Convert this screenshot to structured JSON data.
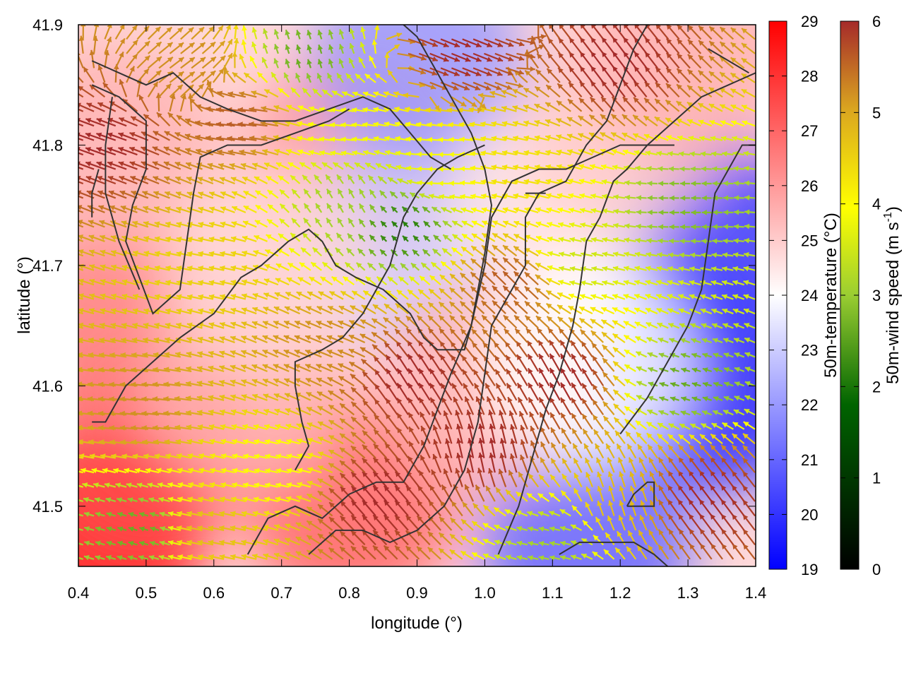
{
  "chart_data": {
    "type": "heatmap",
    "title": "",
    "xlabel": "longitude (°)",
    "ylabel": "latitude (°)",
    "xlim": [
      0.4,
      1.4
    ],
    "ylim": [
      41.45,
      41.9
    ],
    "x_ticks": [
      "0.4",
      "0.5",
      "0.6",
      "0.7",
      "0.8",
      "0.9",
      "1.0",
      "1.1",
      "1.2",
      "1.3",
      "1.4"
    ],
    "y_ticks": [
      "41.5",
      "41.6",
      "41.7",
      "41.8",
      "41.9"
    ],
    "grid": false,
    "overlays": [
      "wind-vectors",
      "contour-lines"
    ],
    "temperature_colorbar": {
      "label": "50m-temperature (°C)",
      "range": [
        19,
        29
      ],
      "ticks": [
        "19",
        "20",
        "21",
        "22",
        "23",
        "24",
        "25",
        "26",
        "27",
        "28",
        "29"
      ],
      "colors": [
        "#0000ff",
        "#ffffff",
        "#ff0000"
      ]
    },
    "wind_colorbar": {
      "label": "50m-wind speed (m s-1)",
      "label_base": "50m-wind speed (m s",
      "label_exp": "-1",
      "label_close": ")",
      "range": [
        0,
        6
      ],
      "ticks": [
        "0",
        "1",
        "2",
        "3",
        "4",
        "5",
        "6"
      ],
      "colors": [
        "#000000",
        "#006400",
        "#9acd32",
        "#ffff00",
        "#daa520",
        "#a52a2a"
      ]
    },
    "temperature_regions": [
      {
        "lon": 0.43,
        "lat": 41.47,
        "value": 28.8
      },
      {
        "lon": 0.5,
        "lat": 41.55,
        "value": 27.5
      },
      {
        "lon": 0.45,
        "lat": 41.65,
        "value": 26.5
      },
      {
        "lon": 0.45,
        "lat": 41.8,
        "value": 25.5
      },
      {
        "lon": 0.8,
        "lat": 41.5,
        "value": 27.0
      },
      {
        "lon": 0.8,
        "lat": 41.79,
        "value": 26.0
      },
      {
        "lon": 0.88,
        "lat": 41.72,
        "value": 23.0
      },
      {
        "lon": 0.9,
        "lat": 41.87,
        "value": 22.0
      },
      {
        "lon": 1.34,
        "lat": 41.6,
        "value": 19.8
      },
      {
        "lon": 1.34,
        "lat": 41.72,
        "value": 20.2
      },
      {
        "lon": 1.15,
        "lat": 41.47,
        "value": 21.0
      },
      {
        "lon": 1.1,
        "lat": 41.75,
        "value": 24.5
      },
      {
        "lon": 1.2,
        "lat": 41.82,
        "value": 25.0
      },
      {
        "lon": 1.3,
        "lat": 41.87,
        "value": 25.5
      },
      {
        "lon": 1.0,
        "lat": 41.6,
        "value": 25.5
      },
      {
        "lon": 1.15,
        "lat": 41.62,
        "value": 24.0
      },
      {
        "lon": 0.65,
        "lat": 41.6,
        "value": 25.5
      },
      {
        "lon": 0.68,
        "lat": 41.7,
        "value": 24.8
      }
    ],
    "wind_regions": [
      {
        "lon": 0.45,
        "lat": 41.8,
        "speed": 6,
        "u": -1,
        "v": 0.35
      },
      {
        "lon": 0.55,
        "lat": 41.86,
        "speed": 5,
        "u": 0.8,
        "v": 0.6
      },
      {
        "lon": 0.65,
        "lat": 41.82,
        "speed": 5.5,
        "u": -1,
        "v": 0.1
      },
      {
        "lon": 0.6,
        "lat": 41.7,
        "speed": 4.2,
        "u": -1,
        "v": 0.2
      },
      {
        "lon": 0.74,
        "lat": 41.87,
        "speed": 2,
        "u": -0.3,
        "v": 1
      },
      {
        "lon": 0.8,
        "lat": 41.75,
        "speed": 2.5,
        "u": -0.5,
        "v": 0.9
      },
      {
        "lon": 0.88,
        "lat": 41.73,
        "speed": 1.5,
        "u": -0.7,
        "v": 0.7
      },
      {
        "lon": 0.8,
        "lat": 41.81,
        "speed": 3.5,
        "u": -1,
        "v": 0.1
      },
      {
        "lon": 0.5,
        "lat": 41.58,
        "speed": 5,
        "u": -1,
        "v": 0.1
      },
      {
        "lon": 0.5,
        "lat": 41.48,
        "speed": 2,
        "u": -1,
        "v": 0.3
      },
      {
        "lon": 0.7,
        "lat": 41.53,
        "speed": 3.5,
        "u": -1,
        "v": 0.2
      },
      {
        "lon": 0.78,
        "lat": 41.63,
        "speed": 5,
        "u": -1,
        "v": 0.4
      },
      {
        "lon": 0.9,
        "lat": 41.6,
        "speed": 6,
        "u": -0.5,
        "v": 0.8
      },
      {
        "lon": 1.0,
        "lat": 41.54,
        "speed": 6,
        "u": -0.2,
        "v": 1
      },
      {
        "lon": 0.85,
        "lat": 41.5,
        "speed": 6,
        "u": -0.6,
        "v": 0.7
      },
      {
        "lon": 1.05,
        "lat": 41.68,
        "speed": 5.5,
        "u": -0.7,
        "v": 0.7
      },
      {
        "lon": 1.15,
        "lat": 41.7,
        "speed": 3,
        "u": -1,
        "v": 0.2
      },
      {
        "lon": 1.3,
        "lat": 41.6,
        "speed": 2,
        "u": -1,
        "v": 0.3
      },
      {
        "lon": 1.3,
        "lat": 41.75,
        "speed": 2.2,
        "u": -1,
        "v": 0
      },
      {
        "lon": 1.2,
        "lat": 41.5,
        "speed": 4.5,
        "u": -0.3,
        "v": 1
      },
      {
        "lon": 1.33,
        "lat": 41.5,
        "speed": 6,
        "u": -0.6,
        "v": 0.8
      },
      {
        "lon": 1.12,
        "lat": 41.6,
        "speed": 6,
        "u": -0.5,
        "v": 0.9
      },
      {
        "lon": 1.2,
        "lat": 41.86,
        "speed": 6,
        "u": -0.6,
        "v": 0.8
      },
      {
        "lon": 1.05,
        "lat": 41.78,
        "speed": 4,
        "u": -1,
        "v": 0.2
      },
      {
        "lon": 0.95,
        "lat": 41.78,
        "speed": 3.5,
        "u": -1,
        "v": 0
      },
      {
        "lon": 1.1,
        "lat": 41.47,
        "speed": 2.5,
        "u": -1,
        "v": 0.2
      },
      {
        "lon": 0.6,
        "lat": 41.48,
        "speed": 4.5,
        "u": -1,
        "v": 0.2
      },
      {
        "lon": 0.95,
        "lat": 41.88,
        "speed": 6,
        "u": 1,
        "v": -0.4
      }
    ],
    "contours": [
      [
        [
          0.42,
          41.57
        ],
        [
          0.44,
          41.57
        ],
        [
          0.47,
          41.6
        ],
        [
          0.51,
          41.62
        ],
        [
          0.55,
          41.64
        ],
        [
          0.6,
          41.66
        ],
        [
          0.64,
          41.69
        ],
        [
          0.67,
          41.7
        ],
        [
          0.71,
          41.72
        ],
        [
          0.74,
          41.73
        ],
        [
          0.76,
          41.72
        ],
        [
          0.78,
          41.7
        ],
        [
          0.81,
          41.69
        ],
        [
          0.85,
          41.68
        ],
        [
          0.87,
          41.67
        ],
        [
          0.89,
          41.66
        ],
        [
          0.91,
          41.64
        ],
        [
          0.93,
          41.63
        ],
        [
          0.95,
          41.63
        ],
        [
          0.97,
          41.63
        ],
        [
          0.98,
          41.65
        ],
        [
          0.99,
          41.68
        ],
        [
          1.0,
          41.71
        ],
        [
          1.01,
          41.75
        ],
        [
          1.0,
          41.78
        ],
        [
          0.98,
          41.81
        ],
        [
          0.95,
          41.84
        ],
        [
          0.92,
          41.87
        ],
        [
          0.9,
          41.89
        ],
        [
          0.88,
          41.9
        ]
      ],
      [
        [
          0.42,
          41.87
        ],
        [
          0.46,
          41.86
        ],
        [
          0.5,
          41.85
        ],
        [
          0.54,
          41.86
        ],
        [
          0.58,
          41.84
        ],
        [
          0.62,
          41.83
        ],
        [
          0.67,
          41.82
        ],
        [
          0.72,
          41.82
        ],
        [
          0.77,
          41.83
        ],
        [
          0.82,
          41.84
        ],
        [
          0.86,
          41.83
        ],
        [
          0.89,
          41.81
        ],
        [
          0.92,
          41.79
        ],
        [
          0.95,
          41.78
        ]
      ],
      [
        [
          0.42,
          41.85
        ],
        [
          0.46,
          41.84
        ],
        [
          0.5,
          41.82
        ],
        [
          0.5,
          41.78
        ],
        [
          0.48,
          41.75
        ],
        [
          0.47,
          41.72
        ],
        [
          0.49,
          41.69
        ],
        [
          0.51,
          41.66
        ],
        [
          0.53,
          41.67
        ],
        [
          0.55,
          41.68
        ],
        [
          0.56,
          41.72
        ],
        [
          0.57,
          41.76
        ],
        [
          0.58,
          41.79
        ],
        [
          0.62,
          41.8
        ],
        [
          0.67,
          41.8
        ],
        [
          0.72,
          41.81
        ],
        [
          0.77,
          41.82
        ],
        [
          0.8,
          41.83
        ]
      ],
      [
        [
          0.72,
          41.53
        ],
        [
          0.74,
          41.55
        ],
        [
          0.73,
          41.57
        ],
        [
          0.72,
          41.6
        ],
        [
          0.72,
          41.62
        ],
        [
          0.76,
          41.63
        ],
        [
          0.79,
          41.64
        ],
        [
          0.82,
          41.66
        ],
        [
          0.84,
          41.68
        ],
        [
          0.86,
          41.7
        ],
        [
          0.87,
          41.72
        ],
        [
          0.88,
          41.74
        ],
        [
          0.9,
          41.76
        ],
        [
          0.93,
          41.78
        ],
        [
          0.96,
          41.79
        ],
        [
          1.0,
          41.8
        ]
      ],
      [
        [
          0.65,
          41.46
        ],
        [
          0.68,
          41.49
        ],
        [
          0.72,
          41.5
        ],
        [
          0.76,
          41.49
        ],
        [
          0.8,
          41.51
        ],
        [
          0.84,
          41.52
        ],
        [
          0.88,
          41.52
        ],
        [
          0.91,
          41.55
        ],
        [
          0.93,
          41.58
        ],
        [
          0.95,
          41.61
        ],
        [
          0.98,
          41.65
        ],
        [
          1.0,
          41.7
        ],
        [
          1.01,
          41.74
        ],
        [
          1.04,
          41.77
        ],
        [
          1.08,
          41.78
        ],
        [
          1.12,
          41.78
        ],
        [
          1.16,
          41.79
        ],
        [
          1.2,
          41.8
        ],
        [
          1.24,
          41.8
        ],
        [
          1.28,
          41.8
        ]
      ],
      [
        [
          0.74,
          41.46
        ],
        [
          0.78,
          41.48
        ],
        [
          0.82,
          41.48
        ],
        [
          0.86,
          41.47
        ],
        [
          0.9,
          41.48
        ],
        [
          0.94,
          41.5
        ],
        [
          0.97,
          41.53
        ],
        [
          0.99,
          41.57
        ],
        [
          1.0,
          41.61
        ],
        [
          1.01,
          41.65
        ],
        [
          1.04,
          41.68
        ],
        [
          1.06,
          41.7
        ],
        [
          1.06,
          41.74
        ],
        [
          1.08,
          41.76
        ],
        [
          1.12,
          41.77
        ],
        [
          1.15,
          41.8
        ],
        [
          1.18,
          41.82
        ],
        [
          1.2,
          41.85
        ],
        [
          1.22,
          41.88
        ],
        [
          1.24,
          41.9
        ]
      ],
      [
        [
          1.02,
          41.46
        ],
        [
          1.05,
          41.5
        ],
        [
          1.07,
          41.54
        ],
        [
          1.09,
          41.58
        ],
        [
          1.11,
          41.61
        ],
        [
          1.13,
          41.65
        ],
        [
          1.14,
          41.68
        ],
        [
          1.15,
          41.72
        ],
        [
          1.17,
          41.74
        ],
        [
          1.19,
          41.77
        ],
        [
          1.21,
          41.78
        ],
        [
          1.24,
          41.8
        ],
        [
          1.28,
          41.82
        ],
        [
          1.32,
          41.84
        ],
        [
          1.36,
          41.85
        ],
        [
          1.4,
          41.86
        ]
      ],
      [
        [
          1.11,
          41.46
        ],
        [
          1.14,
          41.47
        ],
        [
          1.18,
          41.47
        ],
        [
          1.22,
          41.47
        ],
        [
          1.25,
          41.46
        ],
        [
          1.27,
          41.45
        ]
      ],
      [
        [
          1.21,
          41.5
        ],
        [
          1.25,
          41.5
        ],
        [
          1.25,
          41.52
        ],
        [
          1.24,
          41.52
        ],
        [
          1.22,
          41.51
        ],
        [
          1.21,
          41.5
        ]
      ],
      [
        [
          1.06,
          41.76
        ],
        [
          1.08,
          41.76
        ],
        [
          1.09,
          41.76
        ],
        [
          1.07,
          41.76
        ],
        [
          1.06,
          41.76
        ]
      ],
      [
        [
          1.2,
          41.56
        ],
        [
          1.24,
          41.59
        ],
        [
          1.27,
          41.62
        ],
        [
          1.3,
          41.65
        ],
        [
          1.32,
          41.68
        ],
        [
          1.33,
          41.72
        ],
        [
          1.34,
          41.76
        ],
        [
          1.36,
          41.78
        ],
        [
          1.38,
          41.8
        ],
        [
          1.4,
          41.8
        ]
      ],
      [
        [
          0.49,
          41.68
        ],
        [
          0.46,
          41.72
        ],
        [
          0.44,
          41.76
        ],
        [
          0.44,
          41.8
        ],
        [
          0.45,
          41.84
        ]
      ],
      [
        [
          0.42,
          41.74
        ],
        [
          0.42,
          41.76
        ],
        [
          0.43,
          41.78
        ]
      ],
      [
        [
          1.33,
          41.88
        ],
        [
          1.36,
          41.87
        ],
        [
          1.39,
          41.86
        ]
      ]
    ]
  }
}
